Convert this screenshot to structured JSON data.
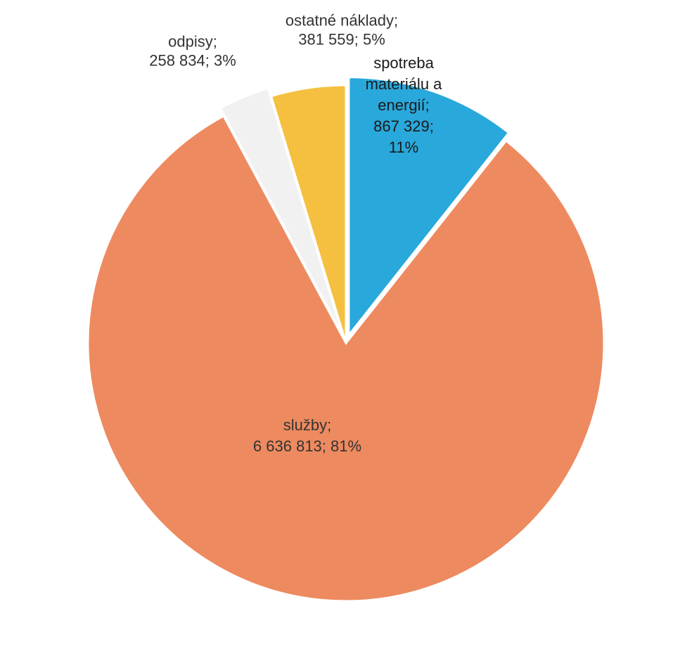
{
  "chart_data": {
    "type": "pie",
    "title": "",
    "start_angle_deg": 0,
    "direction": "clockwise",
    "slices": [
      {
        "category": "spotreba materiálu a energií",
        "value": 867329,
        "percent": "11%",
        "label_lines": [
          "spotreba",
          "materiálu a",
          "energií;",
          "867 329;",
          "11%"
        ],
        "color": "#29A8DB",
        "exploded": true
      },
      {
        "category": "služby",
        "value": 6636813,
        "percent": "81%",
        "label_lines": [
          "služby;",
          "6 636 813; 81%"
        ],
        "color": "#EE8A5F",
        "exploded": false
      },
      {
        "category": "odpisy",
        "value": 258834,
        "percent": "3%",
        "label_lines": [
          "odpisy;",
          "258 834; 3%"
        ],
        "color": "#F1F1F1",
        "exploded": true
      },
      {
        "category": "ostatné náklady",
        "value": 381559,
        "percent": "5%",
        "label_lines": [
          "ostatné náklady;",
          "381 559; 5%"
        ],
        "color": "#F5C040",
        "exploded": false
      }
    ]
  }
}
